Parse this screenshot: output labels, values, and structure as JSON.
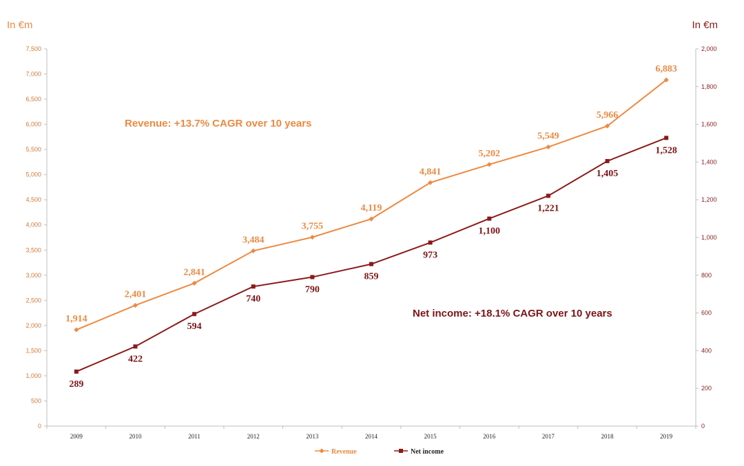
{
  "chart_data": {
    "type": "line",
    "left_unit": "In €m",
    "right_unit": "In €m",
    "categories": [
      "2009",
      "2010",
      "2011",
      "2012",
      "2013",
      "2014",
      "2015",
      "2016",
      "2017",
      "2018",
      "2019"
    ],
    "left_axis": {
      "ylim": [
        0,
        7500
      ],
      "ticks": [
        "0",
        "500",
        "1,000",
        "1,500",
        "2,000",
        "2,500",
        "3,000",
        "3,500",
        "4,000",
        "4,500",
        "5,000",
        "5,500",
        "6,000",
        "6,500",
        "7,000",
        "7,500"
      ]
    },
    "right_axis": {
      "ylim": [
        0,
        2000
      ],
      "ticks": [
        "0",
        "200",
        "400",
        "600",
        "800",
        "1,000",
        "1,200",
        "1,400",
        "1,600",
        "1,800",
        "2,000"
      ]
    },
    "series": [
      {
        "name": "Revenue",
        "axis": "left",
        "color": "#ec8a42",
        "marker": "diamond",
        "values": [
          1914,
          2401,
          2841,
          3484,
          3755,
          4119,
          4841,
          5202,
          5549,
          5966,
          6883
        ],
        "labels": [
          "1,914",
          "2,401",
          "2,841",
          "3,484",
          "3,755",
          "4,119",
          "4,841",
          "5,202",
          "5,549",
          "5,966",
          "6,883"
        ]
      },
      {
        "name": "Net income",
        "axis": "right",
        "color": "#8b1a1a",
        "marker": "square",
        "values": [
          289,
          422,
          594,
          740,
          790,
          859,
          973,
          1100,
          1221,
          1405,
          1528
        ],
        "labels": [
          "289",
          "422",
          "594",
          "740",
          "790",
          "859",
          "973",
          "1,100",
          "1,221",
          "1,405",
          "1,528"
        ]
      }
    ],
    "annotations": {
      "revenue": "Revenue: +13.7% CAGR over 10 years",
      "net_income": "Net income: +18.1% CAGR over 10 years"
    },
    "legend_position": "bottom",
    "grid": false
  }
}
